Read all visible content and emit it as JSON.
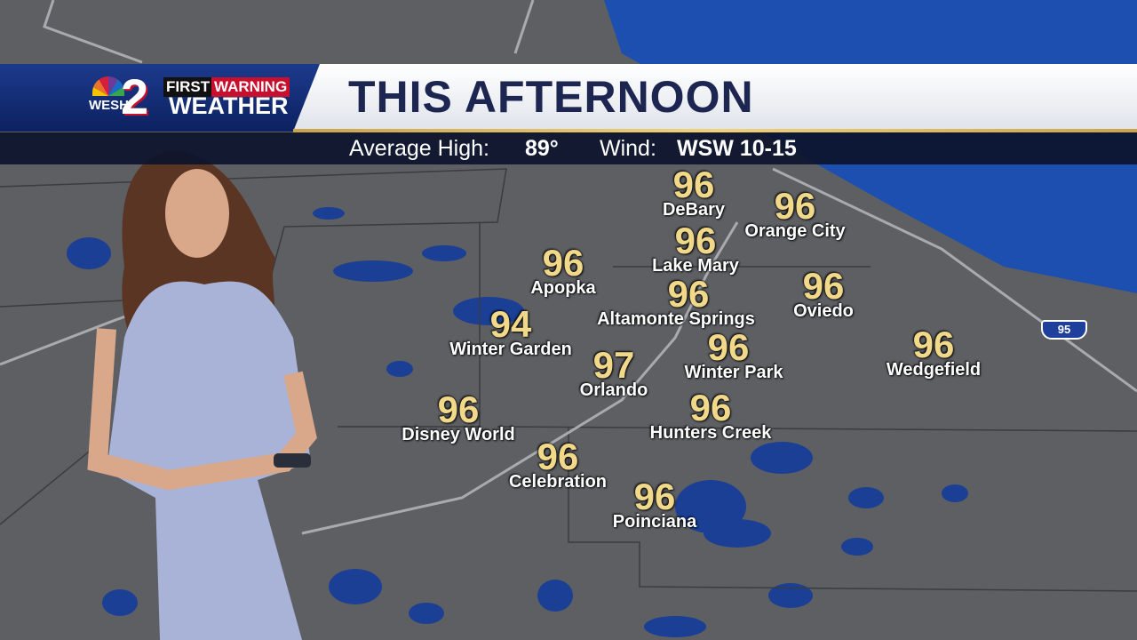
{
  "branding": {
    "station": "WESH",
    "channel": "2",
    "first": "FIRST",
    "warning": "WARNING",
    "weather": "WEATHER"
  },
  "header": {
    "title": "THIS AFTERNOON"
  },
  "subheader": {
    "avg_label": "Average High:",
    "avg_value": "89°",
    "wind_label": "Wind:",
    "wind_value": "WSW 10-15"
  },
  "map": {
    "interstate": "95",
    "colors": {
      "land": "#5d5f63",
      "water": "#1d4fb0",
      "temp": "#f2d98a"
    }
  },
  "cities": [
    {
      "name": "DeBary",
      "temp": "96"
    },
    {
      "name": "Orange City",
      "temp": "96"
    },
    {
      "name": "Lake Mary",
      "temp": "96"
    },
    {
      "name": "Apopka",
      "temp": "96"
    },
    {
      "name": "Altamonte Springs",
      "temp": "96"
    },
    {
      "name": "Oviedo",
      "temp": "96"
    },
    {
      "name": "Winter Garden",
      "temp": "94"
    },
    {
      "name": "Winter Park",
      "temp": "96"
    },
    {
      "name": "Wedgefield",
      "temp": "96"
    },
    {
      "name": "Orlando",
      "temp": "97"
    },
    {
      "name": "Disney World",
      "temp": "96"
    },
    {
      "name": "Hunters Creek",
      "temp": "96"
    },
    {
      "name": "Celebration",
      "temp": "96"
    },
    {
      "name": "Poinciana",
      "temp": "96"
    }
  ]
}
